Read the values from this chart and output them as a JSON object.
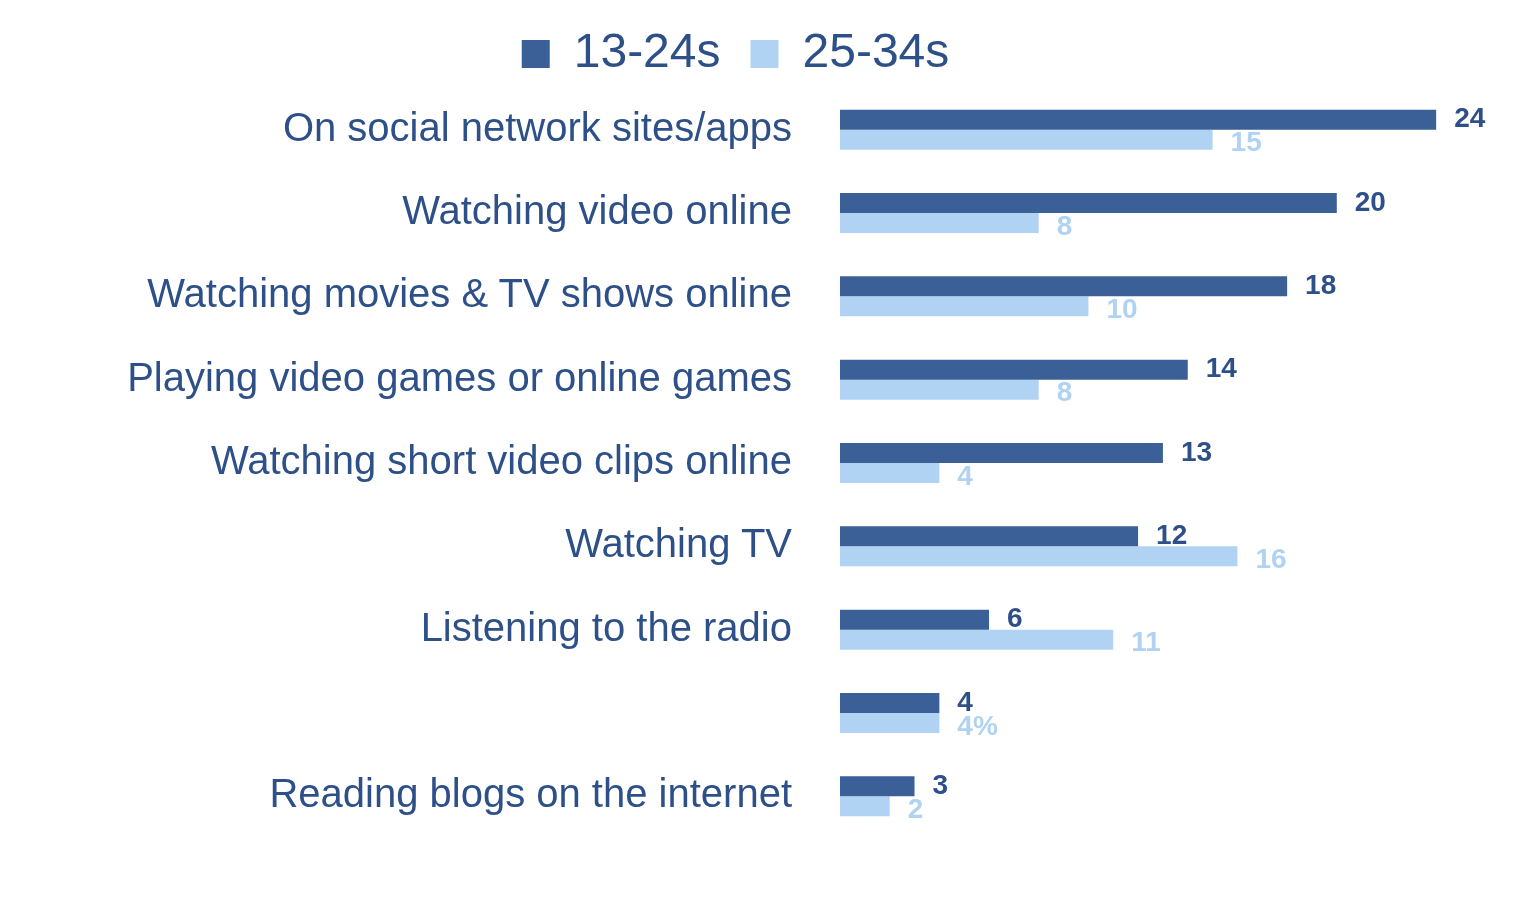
{
  "chart_data": {
    "type": "bar",
    "orientation": "horizontal",
    "legend": "top",
    "data_labels": false,
    "categories": [
      "On social network sites/apps",
      "Watching video online",
      "Watching movies & TV shows online",
      "Playing video games or online games",
      "Watching short video clips online",
      "Watching TV",
      "Listening to the radio",
      null,
      "Reading blogs on the internet"
    ],
    "series": [
      {
        "name": "13-24s",
        "color": "#3a6097",
        "values": [
          24,
          20,
          18,
          14,
          13,
          12,
          6,
          4,
          3
        ],
        "value_labels": [
          "24",
          "20",
          "18",
          "14",
          "13",
          "12",
          "6",
          "4",
          "3"
        ]
      },
      {
        "name": "25-34s",
        "color": "#b0d3f3",
        "values": [
          15,
          8,
          10,
          8,
          4,
          16,
          11,
          4,
          2
        ],
        "value_labels": [
          "15",
          "8",
          "10",
          "8",
          "4",
          "16",
          "11",
          "4%",
          "2"
        ]
      }
    ]
  }
}
